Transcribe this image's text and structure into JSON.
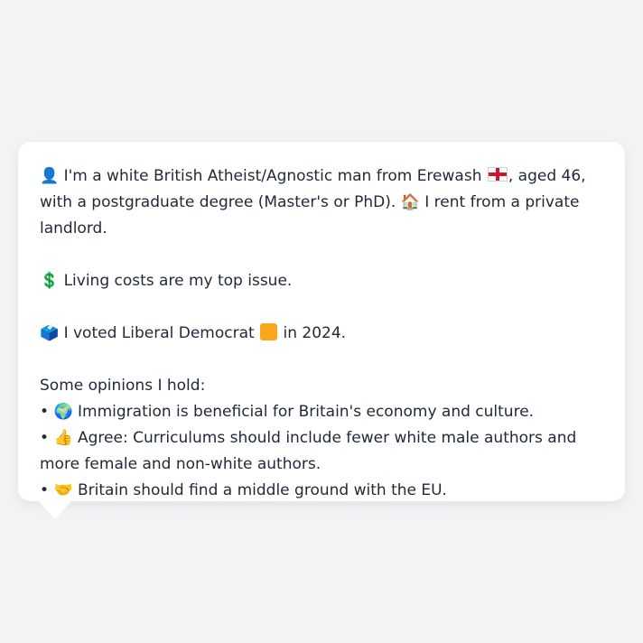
{
  "bio": {
    "person_icon": "👤",
    "text_before_flag": "I'm a white British Atheist/Agnostic man from Erewash",
    "flag_icon": "england-flag",
    "text_after_flag": ", aged 46, with a postgraduate degree (Master's or PhD).",
    "house_icon": "🏠",
    "housing": "I rent from a private landlord."
  },
  "issue": {
    "icon": "💲",
    "text": "Living costs are my top issue."
  },
  "vote": {
    "icon": "🗳️",
    "text_before_swatch": "I voted Liberal Democrat",
    "party_color": "#FAA61A",
    "text_after_swatch": "in 2024."
  },
  "opinions": {
    "heading": "Some opinions I hold:",
    "bullet": "•",
    "items": [
      {
        "icon": "🌍",
        "text": "Immigration is beneficial for Britain's economy and culture."
      },
      {
        "icon": "👍",
        "text": "Agree: Curriculums should include fewer white male authors and more female and non-white authors."
      },
      {
        "icon": "🤝",
        "text": "Britain should find a middle ground with the EU."
      }
    ]
  }
}
